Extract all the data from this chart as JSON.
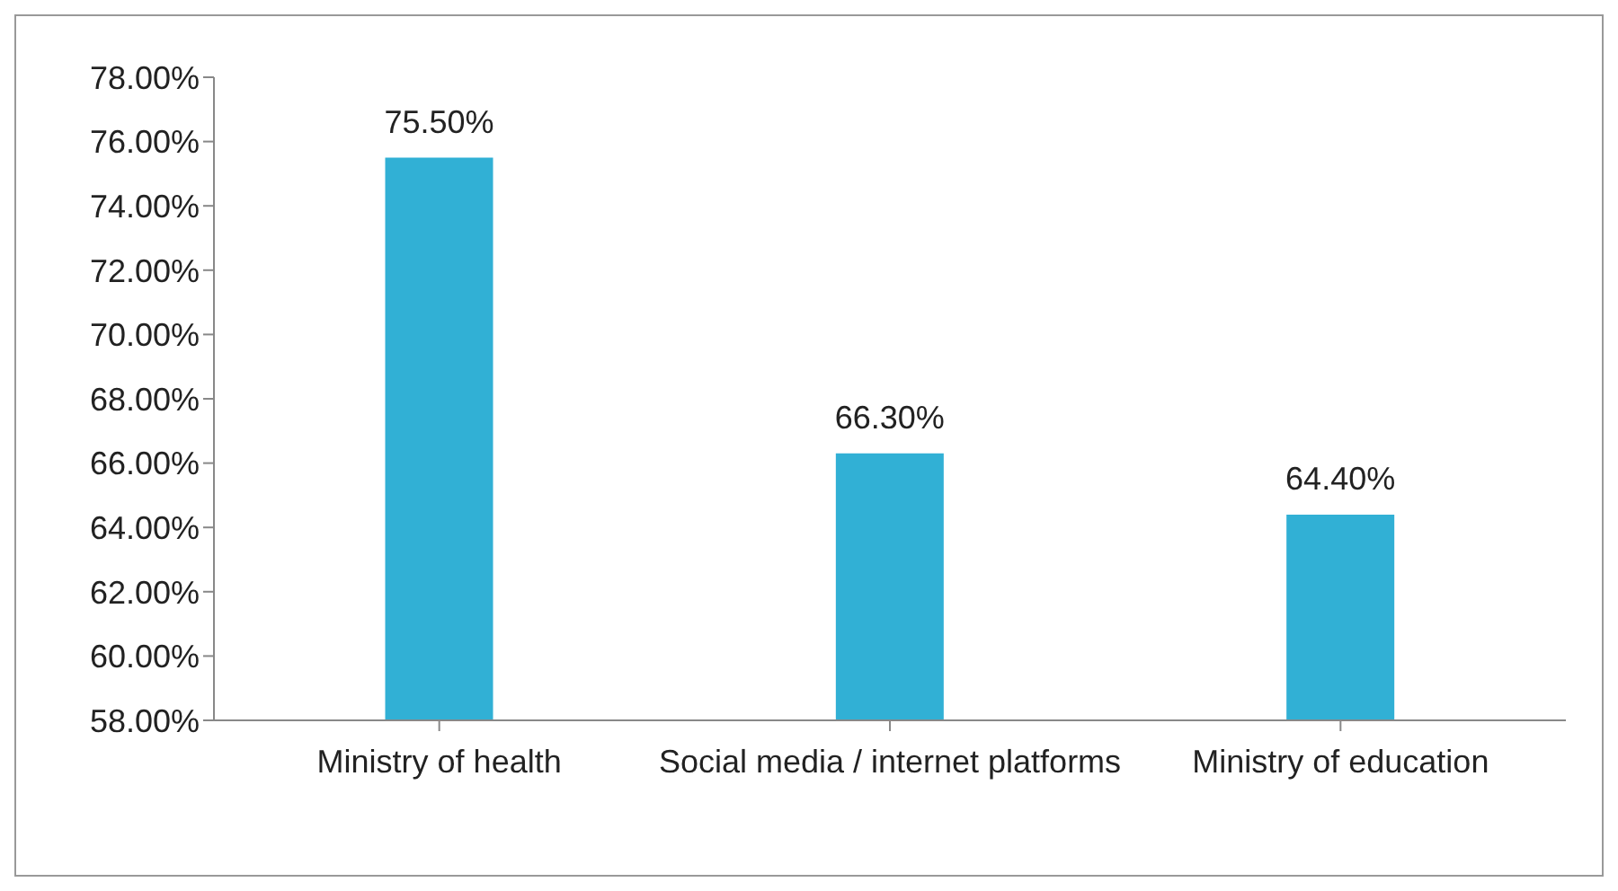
{
  "chart_data": {
    "type": "bar",
    "categories": [
      "Ministry of health",
      "Social media / internet platforms",
      "Ministry of education"
    ],
    "values": [
      75.5,
      66.3,
      64.4
    ],
    "color": "#31b0d5",
    "value_labels": [
      "75.50%",
      "66.30%",
      "64.40%"
    ],
    "ylim": [
      58,
      78
    ],
    "yticks": [
      {
        "value": 58,
        "label": "58.00%"
      },
      {
        "value": 60,
        "label": "60.00%"
      },
      {
        "value": 62,
        "label": "62.00%"
      },
      {
        "value": 64,
        "label": "64.00%"
      },
      {
        "value": 66,
        "label": "66.00%"
      },
      {
        "value": 68,
        "label": "68.00%"
      },
      {
        "value": 70,
        "label": "70.00%"
      },
      {
        "value": 72,
        "label": "72.00%"
      },
      {
        "value": 74,
        "label": "74.00%"
      },
      {
        "value": 76,
        "label": "76.00%"
      },
      {
        "value": 78,
        "label": "78.00%"
      }
    ],
    "grid": false,
    "legend": false
  }
}
